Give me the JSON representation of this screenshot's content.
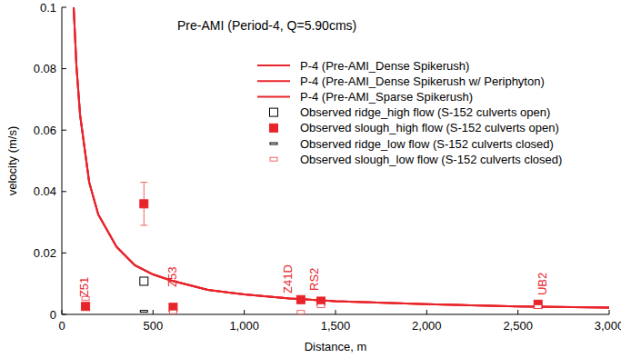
{
  "chart_data": {
    "type": "scatter",
    "title": "Pre-AMI (Period-4, Q=5.90cms)",
    "x_label": "Distance, m",
    "y_label": "velocity (m/s)",
    "xlim": [
      0,
      3000
    ],
    "ylim": [
      0,
      0.1
    ],
    "xticks": [
      0,
      500,
      {
        "value": 1000,
        "label": "1,000"
      },
      {
        "value": 1500,
        "label": "1,500"
      },
      {
        "value": 2000,
        "label": "2,000"
      },
      {
        "value": 2500,
        "label": "2,500"
      },
      {
        "value": 3000,
        "label": "3,000"
      }
    ],
    "yticks": [
      0,
      0.02,
      0.04,
      0.06,
      0.08,
      0.1
    ],
    "grid": false,
    "legend": "upper right",
    "series": [
      {
        "name": "P-4 (Pre-AMI_Dense Spikerush)",
        "type": "line",
        "color": "#e8242b",
        "marker": "none",
        "line_style": "solid",
        "x": [
          65,
          80,
          100,
          150,
          200,
          300,
          400,
          500,
          600,
          800,
          1000,
          1250,
          1500,
          2000,
          2500,
          3000
        ],
        "values": [
          0.1,
          0.081,
          0.065,
          0.043,
          0.0325,
          0.022,
          0.016,
          0.013,
          0.011,
          0.008,
          0.0065,
          0.0052,
          0.0043,
          0.0033,
          0.0026,
          0.0022
        ]
      },
      {
        "name": "P-4 (Pre-AMI_Dense Spikerush w/ Periphyton)",
        "type": "line",
        "color": "#e8242b",
        "marker": "none",
        "line_style": "solid",
        "x": [
          65,
          80,
          100,
          150,
          200,
          300,
          400,
          500,
          600,
          800,
          1000,
          1250,
          1500,
          2000,
          2500,
          3000
        ],
        "values": [
          0.1,
          0.081,
          0.065,
          0.043,
          0.0325,
          0.022,
          0.016,
          0.013,
          0.011,
          0.008,
          0.0065,
          0.0052,
          0.0043,
          0.0033,
          0.0026,
          0.0022
        ]
      },
      {
        "name": "P-4 (Pre-AMI_Sparse Spikerush)",
        "type": "line",
        "color": "#e8242b",
        "marker": "none",
        "line_style": "solid",
        "x": [
          65,
          80,
          100,
          150,
          200,
          300,
          400,
          500,
          600,
          800,
          1000,
          1250,
          1500,
          2000,
          2500,
          3000
        ],
        "values": [
          0.1,
          0.081,
          0.065,
          0.043,
          0.0325,
          0.022,
          0.016,
          0.013,
          0.011,
          0.008,
          0.0065,
          0.0052,
          0.0043,
          0.0033,
          0.0026,
          0.0022
        ]
      },
      {
        "name": "Observed ridge_high flow (S-152 culverts open)",
        "type": "scatter",
        "color": "#000000",
        "marker": "square-open",
        "x": [
          450
        ],
        "values": [
          0.0108
        ],
        "errors": [
          0.0007
        ]
      },
      {
        "name": "Observed slough_high flow (S-152 culverts open)",
        "type": "scatter",
        "color": "#e8242b",
        "marker": "square",
        "x": [
          130,
          450,
          610,
          1310,
          1420,
          2610
        ],
        "values": [
          0.0026,
          0.036,
          0.0023,
          0.0048,
          0.0043,
          0.0033
        ],
        "errors": [
          0.0005,
          0.007,
          0.0005,
          0.0004,
          0.0005,
          0.0006
        ]
      },
      {
        "name": "Observed ridge_low flow (S-152 culverts closed)",
        "type": "scatter",
        "color": "#000000",
        "marker": "dash",
        "x": [
          450
        ],
        "values": [
          0.001
        ]
      },
      {
        "name": "Observed slough_low flow (S-152 culverts closed)",
        "type": "scatter",
        "color": "#e8242b",
        "marker": "dash-open",
        "x": [
          130,
          610,
          1310,
          1420,
          2610
        ],
        "values": [
          0.0052,
          0.0008,
          0.0007,
          0.0028,
          0.0025
        ]
      }
    ],
    "annotations": [
      {
        "text": "Z51",
        "x": 125,
        "y": 0.0056
      },
      {
        "text": "Z53",
        "x": 613,
        "y": 0.0089
      },
      {
        "text": "Z41D",
        "x": 1245,
        "y": 0.0068
      },
      {
        "text": "RS2",
        "x": 1390,
        "y": 0.0077
      },
      {
        "text": "UB2",
        "x": 2640,
        "y": 0.0062
      }
    ]
  }
}
